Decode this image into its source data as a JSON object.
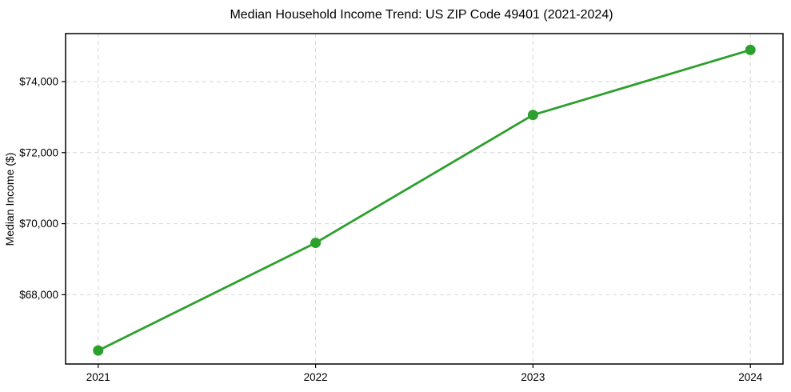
{
  "figure": {
    "background": "#ffffff"
  },
  "chart_data": {
    "type": "line",
    "title": "Median Household Income Trend: US ZIP Code 49401 (2021-2024)",
    "xlabel": "",
    "ylabel": "Median Income ($)",
    "categories": [
      "2021",
      "2022",
      "2023",
      "2024"
    ],
    "series": [
      {
        "name": "Median Household Income",
        "values": [
          66430,
          69460,
          73060,
          74890
        ],
        "color": "#2ca02c",
        "marker": "circle",
        "marker_radius": 6.5,
        "line_width": 2.8
      }
    ],
    "ylim": [
      66050,
      75350
    ],
    "yticks": [
      68000,
      70000,
      72000,
      74000
    ],
    "ytick_labels": [
      "$68,000",
      "$70,000",
      "$72,000",
      "$74,000"
    ],
    "xlim_units": [
      -0.15,
      3.15
    ],
    "grid": true,
    "grid_style": "dashed",
    "legend_position": "none",
    "colors": {
      "grid": "#d6d6d6",
      "axis": "#000000",
      "text": "#000000",
      "background": "#ffffff"
    }
  }
}
